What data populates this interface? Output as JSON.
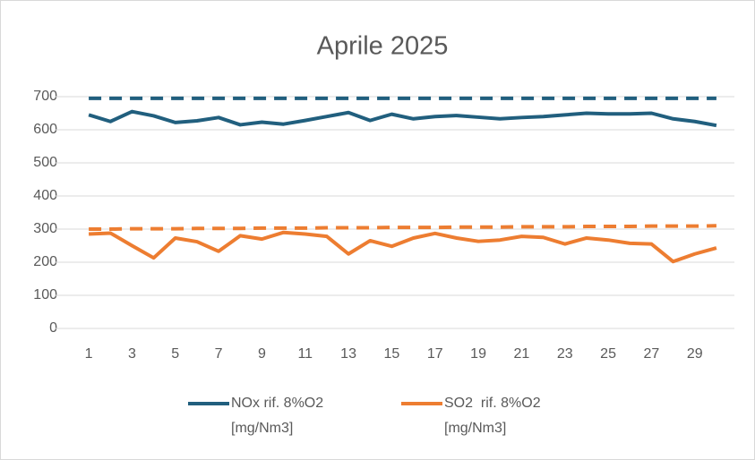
{
  "chart_data": {
    "type": "line",
    "title": "Aprile 2025",
    "categories": [
      1,
      null,
      3,
      null,
      5,
      null,
      7,
      null,
      9,
      null,
      11,
      null,
      13,
      null,
      15,
      null,
      17,
      null,
      19,
      null,
      21,
      null,
      23,
      null,
      25,
      null,
      27,
      null,
      29,
      null
    ],
    "series": [
      {
        "name": "NOx rif. 8%O2 [mg/Nm3]",
        "color": "#215f7e",
        "values": [
          645,
          625,
          655,
          642,
          622,
          627,
          637,
          615,
          623,
          617,
          628,
          640,
          652,
          628,
          647,
          633,
          640,
          643,
          638,
          633,
          637,
          640,
          645,
          650,
          648,
          648,
          650,
          633,
          625,
          613
        ]
      },
      {
        "name": "SO2  rif. 8%O2 [mg/Nm3]",
        "color": "#ed7d31",
        "values": [
          285,
          288,
          250,
          213,
          273,
          262,
          233,
          280,
          270,
          290,
          285,
          278,
          225,
          265,
          248,
          273,
          287,
          273,
          263,
          267,
          278,
          275,
          255,
          273,
          267,
          257,
          255,
          202,
          225,
          243
        ]
      },
      {
        "color": "#215f7e",
        "dash": true,
        "values": [
          695,
          695,
          695,
          695,
          695,
          695,
          695,
          695,
          695,
          695,
          695,
          695,
          695,
          695,
          695,
          695,
          695,
          695,
          695,
          695,
          695,
          695,
          695,
          695,
          695,
          695,
          695,
          695,
          695,
          695
        ]
      },
      {
        "color": "#ed7d31",
        "dash": true,
        "values": [
          300,
          300,
          301,
          301,
          301,
          302,
          302,
          302,
          303,
          303,
          303,
          304,
          304,
          304,
          305,
          305,
          305,
          306,
          306,
          306,
          307,
          307,
          307,
          308,
          308,
          308,
          309,
          309,
          309,
          310
        ]
      }
    ],
    "ylim": [
      0,
      700
    ],
    "yticks": [
      0,
      100,
      200,
      300,
      400,
      500,
      600,
      700
    ],
    "grid": true,
    "legend": "bottom"
  }
}
